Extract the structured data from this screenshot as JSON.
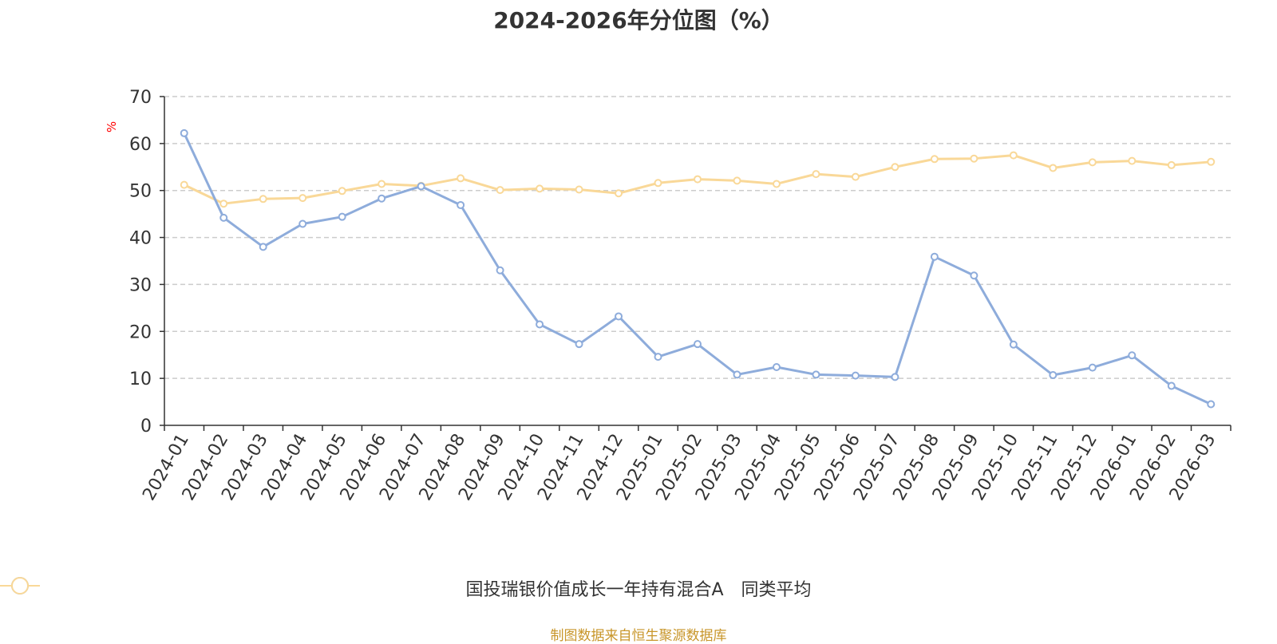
{
  "chart_data": {
    "type": "line",
    "title": "2024-2026年分位图（%）",
    "ylabel": "%",
    "xlabel": "",
    "ylim": [
      0,
      70
    ],
    "yticks": [
      0,
      10,
      20,
      30,
      40,
      50,
      60,
      70
    ],
    "grid": true,
    "legend_position": "bottom-center",
    "categories": [
      "2024-01",
      "2024-02",
      "2024-03",
      "2024-04",
      "2024-05",
      "2024-06",
      "2024-07",
      "2024-08",
      "2024-09",
      "2024-10",
      "2024-11",
      "2024-12",
      "2025-01",
      "2025-02",
      "2025-03",
      "2025-04",
      "2025-05",
      "2025-06",
      "2025-07",
      "2025-08",
      "2025-09",
      "2025-10",
      "2025-11",
      "2025-12",
      "2026-01",
      "2026-02",
      "2026-03"
    ],
    "series": [
      {
        "name": "国投瑞银价值成长一年持有混合A",
        "color": "#8eacdb",
        "values": [
          62.2,
          44.2,
          38.0,
          42.9,
          44.4,
          48.3,
          50.9,
          46.9,
          33.0,
          21.5,
          17.3,
          23.2,
          14.6,
          17.3,
          10.8,
          12.4,
          10.8,
          10.6,
          10.3,
          35.9,
          31.9,
          17.2,
          10.7,
          12.3,
          14.9,
          8.4,
          4.5
        ]
      },
      {
        "name": "同类平均",
        "color": "#f9d898",
        "values": [
          51.2,
          47.2,
          48.2,
          48.4,
          49.9,
          51.4,
          51.0,
          52.6,
          50.1,
          50.4,
          50.2,
          49.4,
          51.6,
          52.4,
          52.1,
          51.4,
          53.5,
          52.9,
          55.0,
          56.7,
          56.8,
          57.5,
          54.8,
          56.0,
          56.3,
          55.4,
          56.1
        ]
      }
    ]
  },
  "source_note": "制图数据来自恒生聚源数据库"
}
